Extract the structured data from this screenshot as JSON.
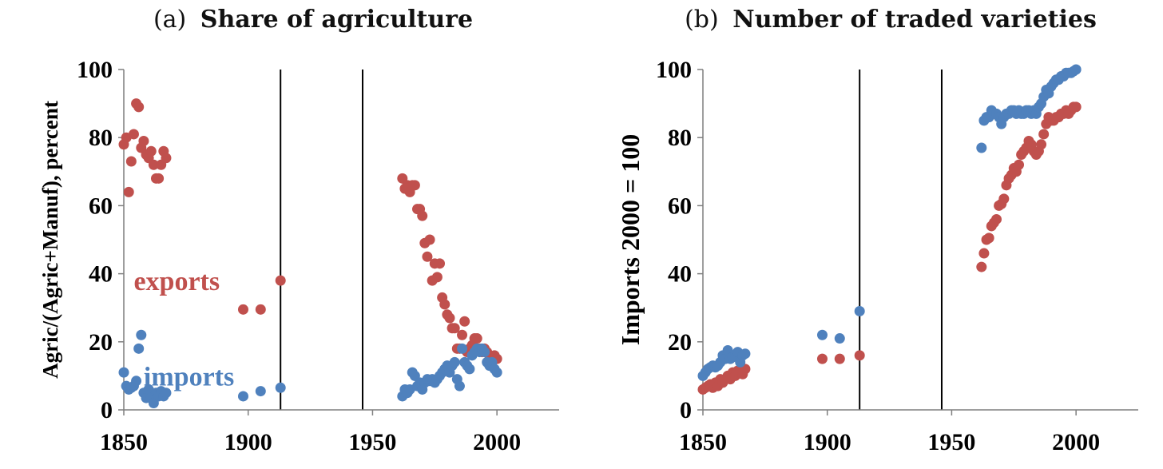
{
  "colors": {
    "exports": "#c0504d",
    "imports": "#4f81bd",
    "axis": "#000000"
  },
  "chart_data": [
    {
      "type": "scatter",
      "title_prefix": "(a)",
      "title": "Share of agriculture",
      "xlabel": "",
      "ylabel": "Agric/(Agric+Manuf), percent",
      "xlim": [
        1850,
        2025
      ],
      "ylim": [
        0,
        100
      ],
      "xticks": [
        1850,
        1900,
        1950,
        2000
      ],
      "yticks": [
        0,
        20,
        40,
        60,
        80,
        100
      ],
      "vlines": [
        1913,
        1946
      ],
      "annotations": [
        {
          "text": "exports",
          "series": "exports",
          "x": 1854,
          "y": 38
        },
        {
          "text": "imports",
          "series": "imports",
          "x": 1858,
          "y": 10
        }
      ],
      "series": [
        {
          "name": "exports",
          "points": [
            [
              1850,
              78
            ],
            [
              1851,
              80
            ],
            [
              1852,
              64
            ],
            [
              1853,
              73
            ],
            [
              1854,
              81
            ],
            [
              1855,
              90
            ],
            [
              1856,
              89
            ],
            [
              1857,
              77
            ],
            [
              1858,
              79
            ],
            [
              1859,
              75
            ],
            [
              1860,
              74
            ],
            [
              1861,
              76
            ],
            [
              1862,
              72
            ],
            [
              1863,
              68
            ],
            [
              1864,
              68
            ],
            [
              1865,
              72
            ],
            [
              1866,
              76
            ],
            [
              1867,
              74
            ],
            [
              1898,
              29.5
            ],
            [
              1905,
              29.5
            ],
            [
              1913,
              38
            ],
            [
              1962,
              68
            ],
            [
              1963,
              65
            ],
            [
              1964,
              66
            ],
            [
              1965,
              64
            ],
            [
              1966,
              66
            ],
            [
              1967,
              66
            ],
            [
              1968,
              59
            ],
            [
              1969,
              59
            ],
            [
              1970,
              57
            ],
            [
              1971,
              49
            ],
            [
              1972,
              45
            ],
            [
              1973,
              50
            ],
            [
              1974,
              38
            ],
            [
              1975,
              43
            ],
            [
              1976,
              39
            ],
            [
              1977,
              43
            ],
            [
              1978,
              33
            ],
            [
              1979,
              31
            ],
            [
              1980,
              28
            ],
            [
              1981,
              27
            ],
            [
              1982,
              24
            ],
            [
              1983,
              24
            ],
            [
              1984,
              18
            ],
            [
              1985,
              18
            ],
            [
              1986,
              22
            ],
            [
              1987,
              26
            ],
            [
              1988,
              17
            ],
            [
              1989,
              18
            ],
            [
              1990,
              19
            ],
            [
              1991,
              21
            ],
            [
              1992,
              21
            ],
            [
              1993,
              18
            ],
            [
              1994,
              17
            ],
            [
              1995,
              18
            ],
            [
              1996,
              17
            ],
            [
              1997,
              16
            ],
            [
              1998,
              15
            ],
            [
              1999,
              16
            ],
            [
              2000,
              15
            ]
          ]
        },
        {
          "name": "imports",
          "points": [
            [
              1850,
              11
            ],
            [
              1851,
              7
            ],
            [
              1852,
              6
            ],
            [
              1853,
              6.5
            ],
            [
              1854,
              7
            ],
            [
              1855,
              8.5
            ],
            [
              1856,
              18
            ],
            [
              1857,
              22
            ],
            [
              1858,
              5
            ],
            [
              1859,
              3.5
            ],
            [
              1860,
              6
            ],
            [
              1861,
              3.5
            ],
            [
              1862,
              2
            ],
            [
              1863,
              5
            ],
            [
              1864,
              4
            ],
            [
              1865,
              5.5
            ],
            [
              1866,
              4
            ],
            [
              1867,
              5
            ],
            [
              1898,
              4
            ],
            [
              1905,
              5.5
            ],
            [
              1913,
              6.5
            ],
            [
              1962,
              4
            ],
            [
              1963,
              6
            ],
            [
              1964,
              5
            ],
            [
              1965,
              6
            ],
            [
              1966,
              11
            ],
            [
              1967,
              10
            ],
            [
              1968,
              7
            ],
            [
              1969,
              8
            ],
            [
              1970,
              6
            ],
            [
              1971,
              8
            ],
            [
              1972,
              9
            ],
            [
              1973,
              8.5
            ],
            [
              1974,
              9
            ],
            [
              1975,
              8
            ],
            [
              1976,
              9
            ],
            [
              1977,
              10
            ],
            [
              1978,
              11
            ],
            [
              1979,
              12
            ],
            [
              1980,
              13
            ],
            [
              1981,
              11
            ],
            [
              1982,
              13
            ],
            [
              1983,
              14
            ],
            [
              1984,
              9
            ],
            [
              1985,
              7
            ],
            [
              1986,
              18
            ],
            [
              1987,
              14
            ],
            [
              1988,
              13
            ],
            [
              1989,
              12
            ],
            [
              1990,
              16
            ],
            [
              1991,
              17
            ],
            [
              1992,
              18
            ],
            [
              1993,
              17
            ],
            [
              1994,
              18
            ],
            [
              1995,
              17
            ],
            [
              1996,
              14
            ],
            [
              1997,
              13
            ],
            [
              1998,
              14
            ],
            [
              1999,
              12
            ],
            [
              2000,
              11
            ]
          ]
        }
      ]
    },
    {
      "type": "scatter",
      "title_prefix": "(b)",
      "title": "Number of traded varieties",
      "xlabel": "",
      "ylabel": "Imports 2000 = 100",
      "xlim": [
        1850,
        2025
      ],
      "ylim": [
        0,
        100
      ],
      "xticks": [
        1850,
        1900,
        1950,
        2000
      ],
      "yticks": [
        0,
        20,
        40,
        60,
        80,
        100
      ],
      "vlines": [
        1913,
        1946
      ],
      "series": [
        {
          "name": "exports",
          "points": [
            [
              1850,
              6
            ],
            [
              1851,
              6.5
            ],
            [
              1852,
              7
            ],
            [
              1853,
              7.5
            ],
            [
              1854,
              6.5
            ],
            [
              1855,
              8
            ],
            [
              1856,
              7
            ],
            [
              1857,
              9
            ],
            [
              1858,
              8
            ],
            [
              1859,
              9
            ],
            [
              1860,
              10
            ],
            [
              1861,
              9
            ],
            [
              1862,
              11
            ],
            [
              1863,
              10
            ],
            [
              1864,
              11.5
            ],
            [
              1865,
              11
            ],
            [
              1866,
              10.5
            ],
            [
              1867,
              12
            ],
            [
              1898,
              15
            ],
            [
              1905,
              15
            ],
            [
              1913,
              16
            ],
            [
              1962,
              42
            ],
            [
              1963,
              46
            ],
            [
              1964,
              50
            ],
            [
              1965,
              50.5
            ],
            [
              1966,
              54
            ],
            [
              1967,
              55
            ],
            [
              1968,
              56
            ],
            [
              1969,
              60
            ],
            [
              1970,
              60.5
            ],
            [
              1971,
              62
            ],
            [
              1972,
              66
            ],
            [
              1973,
              68
            ],
            [
              1974,
              69
            ],
            [
              1975,
              71
            ],
            [
              1976,
              70
            ],
            [
              1977,
              72
            ],
            [
              1978,
              75
            ],
            [
              1979,
              76
            ],
            [
              1980,
              77
            ],
            [
              1981,
              79
            ],
            [
              1982,
              78
            ],
            [
              1983,
              76
            ],
            [
              1984,
              75
            ],
            [
              1985,
              76
            ],
            [
              1986,
              78
            ],
            [
              1987,
              81
            ],
            [
              1988,
              84
            ],
            [
              1989,
              86
            ],
            [
              1990,
              85
            ],
            [
              1991,
              85
            ],
            [
              1992,
              86
            ],
            [
              1993,
              86
            ],
            [
              1994,
              87
            ],
            [
              1995,
              87
            ],
            [
              1996,
              88
            ],
            [
              1997,
              87
            ],
            [
              1998,
              88
            ],
            [
              1999,
              89
            ],
            [
              2000,
              89
            ]
          ]
        },
        {
          "name": "imports",
          "points": [
            [
              1850,
              10
            ],
            [
              1851,
              11
            ],
            [
              1852,
              12
            ],
            [
              1853,
              12.5
            ],
            [
              1854,
              13
            ],
            [
              1855,
              12.5
            ],
            [
              1856,
              13
            ],
            [
              1857,
              14
            ],
            [
              1858,
              16
            ],
            [
              1859,
              15
            ],
            [
              1860,
              17.5
            ],
            [
              1861,
              15
            ],
            [
              1862,
              15.5
            ],
            [
              1863,
              16
            ],
            [
              1864,
              17
            ],
            [
              1865,
              14
            ],
            [
              1866,
              16
            ],
            [
              1867,
              16.5
            ],
            [
              1898,
              22
            ],
            [
              1905,
              21
            ],
            [
              1913,
              29
            ],
            [
              1962,
              77
            ],
            [
              1963,
              85
            ],
            [
              1964,
              86
            ],
            [
              1965,
              86
            ],
            [
              1966,
              88
            ],
            [
              1967,
              87
            ],
            [
              1968,
              87
            ],
            [
              1969,
              86
            ],
            [
              1970,
              84
            ],
            [
              1971,
              86
            ],
            [
              1972,
              87
            ],
            [
              1973,
              87
            ],
            [
              1974,
              88
            ],
            [
              1975,
              88
            ],
            [
              1976,
              87
            ],
            [
              1977,
              88
            ],
            [
              1978,
              87
            ],
            [
              1979,
              87
            ],
            [
              1980,
              88
            ],
            [
              1981,
              88
            ],
            [
              1982,
              87
            ],
            [
              1983,
              88
            ],
            [
              1984,
              87
            ],
            [
              1985,
              89
            ],
            [
              1986,
              90
            ],
            [
              1987,
              92
            ],
            [
              1988,
              94
            ],
            [
              1989,
              93
            ],
            [
              1990,
              95
            ],
            [
              1991,
              96
            ],
            [
              1992,
              97
            ],
            [
              1993,
              97
            ],
            [
              1994,
              98
            ],
            [
              1995,
              98
            ],
            [
              1996,
              99
            ],
            [
              1997,
              99
            ],
            [
              1998,
              99
            ],
            [
              1999,
              99.5
            ],
            [
              2000,
              100
            ]
          ]
        }
      ]
    }
  ]
}
